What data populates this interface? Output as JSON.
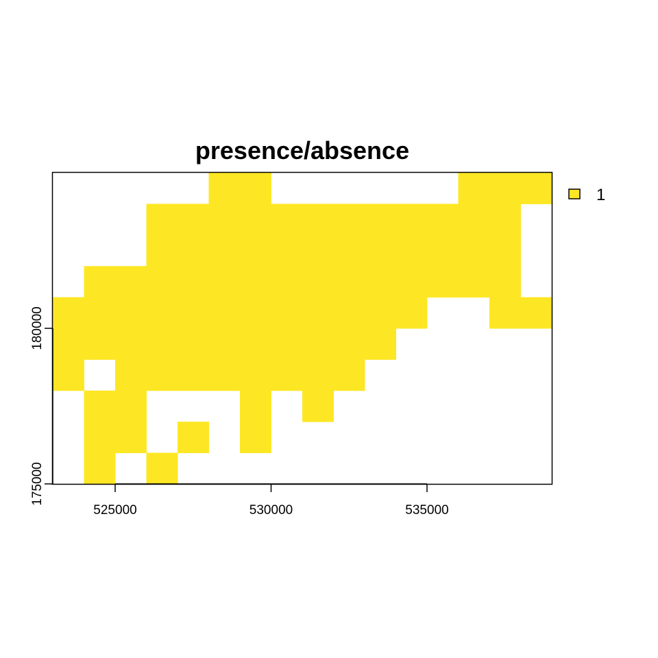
{
  "chart_data": {
    "type": "heatmap",
    "title": "presence/absence",
    "xlabel": "",
    "ylabel": "",
    "xlim": [
      523000,
      539000
    ],
    "ylim": [
      175000,
      185000
    ],
    "cell_size": 1000,
    "x_ticks": [
      525000,
      530000,
      535000
    ],
    "x_tick_labels": [
      "525000",
      "530000",
      "535000"
    ],
    "y_ticks": [
      175000,
      180000
    ],
    "y_tick_labels": [
      "175000",
      "180000"
    ],
    "presence_color": "#FDE725",
    "absence_color": "#FFFFFF",
    "legend": {
      "position": "top-right",
      "entries": [
        {
          "label": "1",
          "color": "#FDE725"
        }
      ]
    },
    "grid": false,
    "rows": [
      {
        "y_top": 185000,
        "present_x_starts": [
          528000,
          529000,
          536000,
          537000,
          538000
        ]
      },
      {
        "y_top": 184000,
        "present_x_starts": [
          526000,
          527000,
          528000,
          529000,
          530000,
          531000,
          532000,
          533000,
          534000,
          535000,
          536000,
          537000
        ]
      },
      {
        "y_top": 183000,
        "present_x_starts": [
          526000,
          527000,
          528000,
          529000,
          530000,
          531000,
          532000,
          533000,
          534000,
          535000,
          536000,
          537000
        ]
      },
      {
        "y_top": 182000,
        "present_x_starts": [
          524000,
          525000,
          526000,
          527000,
          528000,
          529000,
          530000,
          531000,
          532000,
          533000,
          534000,
          535000,
          536000,
          537000
        ]
      },
      {
        "y_top": 181000,
        "present_x_starts": [
          523000,
          524000,
          525000,
          526000,
          527000,
          528000,
          529000,
          530000,
          531000,
          532000,
          533000,
          534000,
          537000,
          538000
        ]
      },
      {
        "y_top": 180000,
        "present_x_starts": [
          523000,
          524000,
          525000,
          526000,
          527000,
          528000,
          529000,
          530000,
          531000,
          532000,
          533000
        ]
      },
      {
        "y_top": 179000,
        "present_x_starts": [
          523000,
          525000,
          526000,
          527000,
          528000,
          529000,
          530000,
          531000,
          532000
        ]
      },
      {
        "y_top": 178000,
        "present_x_starts": [
          524000,
          525000,
          529000,
          531000
        ]
      },
      {
        "y_top": 177000,
        "present_x_starts": [
          524000,
          525000,
          527000,
          529000
        ]
      },
      {
        "y_top": 176000,
        "present_x_starts": [
          524000,
          526000
        ]
      }
    ]
  }
}
